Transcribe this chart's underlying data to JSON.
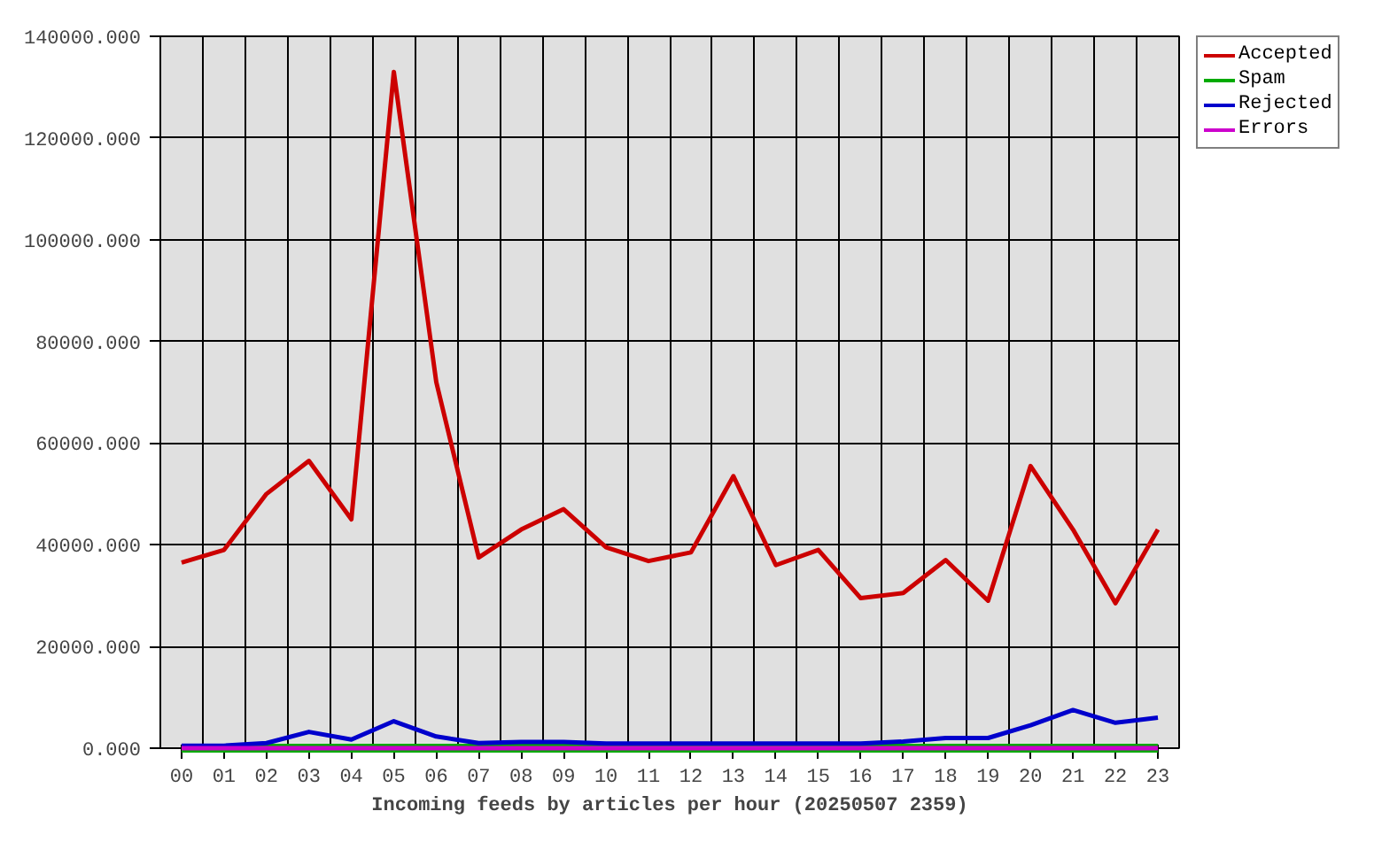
{
  "chart_data": {
    "type": "line",
    "xlabel": "Incoming feeds by articles per hour (20250507 2359)",
    "categories": [
      "00",
      "01",
      "02",
      "03",
      "04",
      "05",
      "06",
      "07",
      "08",
      "09",
      "10",
      "11",
      "12",
      "13",
      "14",
      "15",
      "16",
      "17",
      "18",
      "19",
      "20",
      "21",
      "22",
      "23"
    ],
    "series": [
      {
        "name": "Accepted",
        "color": "#cc0000",
        "values": [
          36500,
          39000,
          50000,
          56500,
          45000,
          133000,
          72000,
          37500,
          43000,
          47000,
          39500,
          36800,
          38500,
          53500,
          36000,
          39000,
          29500,
          30500,
          37000,
          29000,
          55500,
          43000,
          28500,
          43000
        ]
      },
      {
        "name": "Spam",
        "color": "#00aa00",
        "values": [
          0,
          0,
          0,
          0,
          0,
          0,
          0,
          0,
          0,
          0,
          0,
          0,
          0,
          0,
          0,
          0,
          0,
          0,
          0,
          0,
          0,
          0,
          0,
          0
        ]
      },
      {
        "name": "Rejected",
        "color": "#0000cc",
        "values": [
          500,
          500,
          1000,
          3200,
          1700,
          5300,
          2300,
          1000,
          1200,
          1200,
          900,
          900,
          900,
          900,
          900,
          900,
          900,
          1300,
          2000,
          2000,
          4500,
          7500,
          5000,
          6000
        ]
      },
      {
        "name": "Errors",
        "color": "#cc00cc",
        "values": [
          0,
          0,
          0,
          0,
          0,
          0,
          0,
          0,
          0,
          0,
          0,
          0,
          0,
          0,
          0,
          0,
          0,
          0,
          0,
          0,
          0,
          0,
          0,
          0
        ]
      }
    ],
    "ylim": [
      0,
      140000
    ],
    "yticks": [
      {
        "value": 0,
        "label": "0.000"
      },
      {
        "value": 20000,
        "label": "20000.000"
      },
      {
        "value": 40000,
        "label": "40000.000"
      },
      {
        "value": 60000,
        "label": "60000.000"
      },
      {
        "value": 80000,
        "label": "80000.000"
      },
      {
        "value": 100000,
        "label": "100000.000"
      },
      {
        "value": 120000,
        "label": "120000.000"
      },
      {
        "value": 140000,
        "label": "140000.000"
      }
    ],
    "grid": true,
    "legend": "top right",
    "marker": "none",
    "line_style": "solid"
  }
}
